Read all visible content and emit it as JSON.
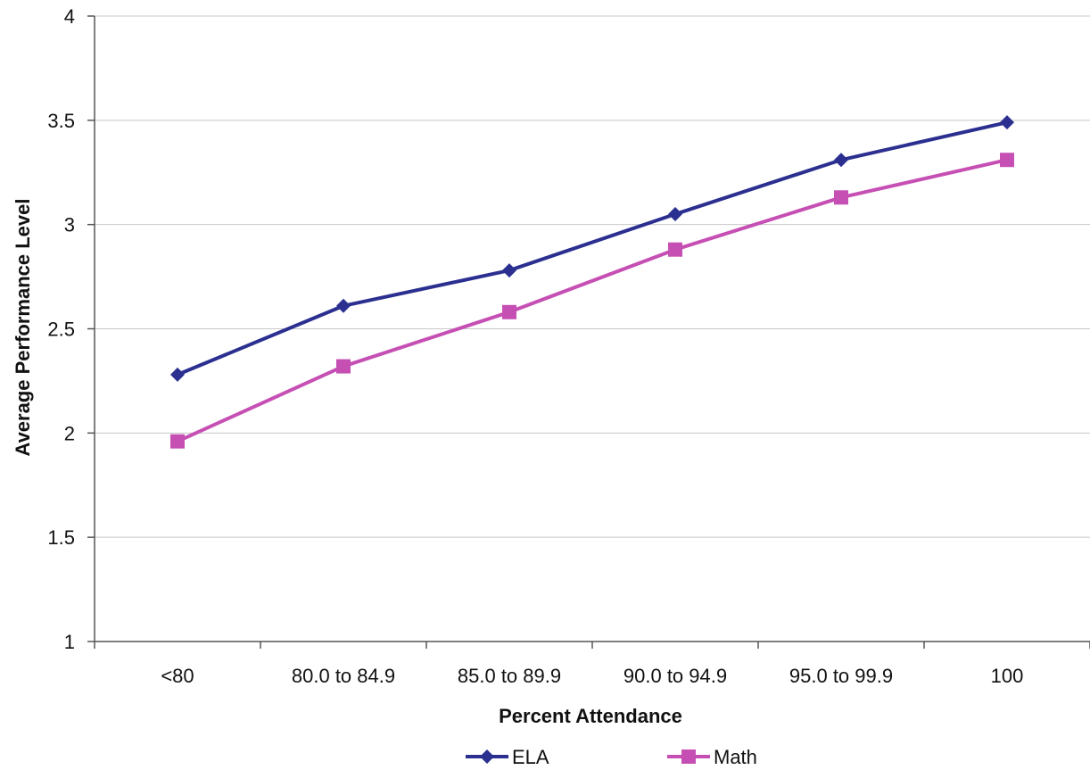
{
  "chart_data": {
    "type": "line",
    "title": "",
    "xlabel": "Percent Attendance",
    "ylabel": "Average Performance Level",
    "categories": [
      "<80",
      "80.0 to 84.9",
      "85.0 to 89.9",
      "90.0 to 94.9",
      "95.0 to 99.9",
      "100"
    ],
    "ylim": [
      1,
      4
    ],
    "yticks": [
      "1",
      "1.5",
      "2",
      "2.5",
      "3",
      "3.5",
      "4"
    ],
    "grid": true,
    "legend_position": "bottom",
    "series": [
      {
        "name": "ELA",
        "values": [
          2.28,
          2.61,
          2.78,
          3.05,
          3.31,
          3.49
        ],
        "color": "#2b2f8f",
        "marker": "diamond"
      },
      {
        "name": "Math",
        "values": [
          1.96,
          2.32,
          2.58,
          2.88,
          3.13,
          3.31
        ],
        "color": "#c64fb4",
        "marker": "square"
      }
    ]
  }
}
